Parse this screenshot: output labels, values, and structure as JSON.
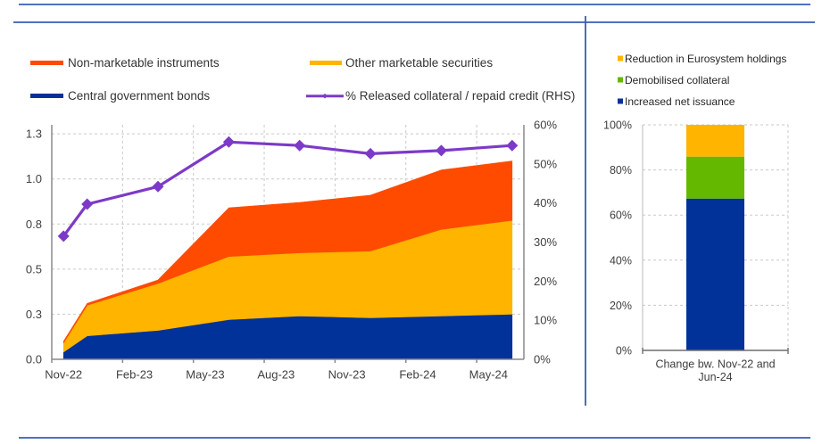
{
  "frame": {
    "line_color": "#3a5cb8"
  },
  "chart_data": [
    {
      "type": "area",
      "title": "",
      "xlabel": "",
      "ylabel": "",
      "x": [
        "Nov-22",
        "Dec-22",
        "Mar-23",
        "Jun-23",
        "Sep-23",
        "Dec-23",
        "Mar-24",
        "Jun-24"
      ],
      "xlim": [
        "Nov-22",
        "Jun-24"
      ],
      "xticks": [
        "Nov-22",
        "Feb-23",
        "May-23",
        "Aug-23",
        "Nov-23",
        "Feb-24",
        "May-24"
      ],
      "ylim_left": [
        0,
        1.3
      ],
      "yticks_left": [
        0,
        0.25,
        0.5,
        0.75,
        1.0,
        1.25
      ],
      "ytick_labels_left": [
        "0.0",
        "0.3",
        "0.5",
        "0.8",
        "1.0",
        "1.3"
      ],
      "ylim_right": [
        0,
        60
      ],
      "yticks_right": [
        0,
        10,
        20,
        30,
        40,
        50,
        60
      ],
      "ytick_labels_right": [
        "0%",
        "10%",
        "20%",
        "30%",
        "40%",
        "50%",
        "60%"
      ],
      "grid": true,
      "legend_position": "top",
      "series": [
        {
          "name": "Central government bonds",
          "kind": "stacked-area",
          "axis": "left",
          "color": "#003299",
          "values": [
            0.04,
            0.13,
            0.16,
            0.22,
            0.24,
            0.23,
            0.24,
            0.25
          ]
        },
        {
          "name": "Other marketable securities",
          "kind": "stacked-area",
          "axis": "left",
          "color": "#FFB400",
          "values": [
            0.05,
            0.17,
            0.26,
            0.35,
            0.35,
            0.37,
            0.48,
            0.52
          ]
        },
        {
          "name": "Non-marketable instruments",
          "kind": "stacked-area",
          "axis": "left",
          "color": "#FF4B00",
          "values": [
            0.01,
            0.01,
            0.02,
            0.27,
            0.28,
            0.31,
            0.33,
            0.33
          ]
        },
        {
          "name": "% Released collateral / repaid credit (RHS)",
          "kind": "line",
          "axis": "right",
          "color": "#7D3AC8",
          "values": [
            31.5,
            39.7,
            44.2,
            55.6,
            54.7,
            52.6,
            53.4,
            54.7
          ]
        }
      ]
    },
    {
      "type": "bar",
      "stacked": true,
      "title": "",
      "categories": [
        "Change bw. Nov-22 and Jun-24"
      ],
      "category_label_lines": [
        "Change bw. Nov-22 and",
        "Jun-24"
      ],
      "ylim": [
        0,
        100
      ],
      "yticks": [
        0,
        20,
        40,
        60,
        80,
        100
      ],
      "ytick_labels": [
        "0%",
        "20%",
        "40%",
        "60%",
        "80%",
        "100%"
      ],
      "grid": true,
      "legend_position": "top",
      "series": [
        {
          "name": "Increased net issuance",
          "color": "#003299",
          "values": [
            67.3
          ]
        },
        {
          "name": "Demobilised collateral",
          "color": "#65B800",
          "values": [
            18.6
          ]
        },
        {
          "name": "Reduction in Eurosystem holdings",
          "color": "#FFB400",
          "values": [
            14.1
          ]
        }
      ]
    }
  ]
}
